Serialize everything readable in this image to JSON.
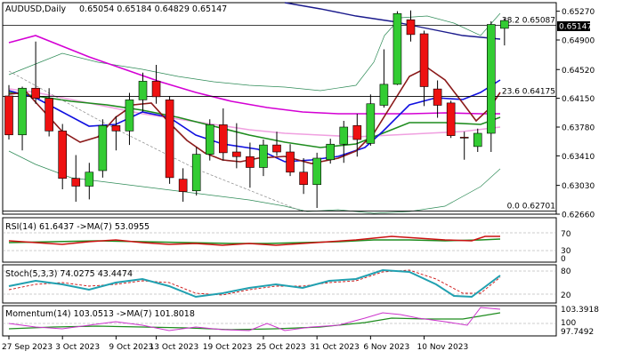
{
  "chart_data": {
    "type": "candlestick",
    "symbol_label": "AUDUSD,Daily",
    "ohlc_label": "0.65054 0.65184 0.64829 0.65147",
    "price_label": "0.65147",
    "price_axis_ticks": [
      "0.65270",
      "0.64900",
      "0.64520",
      "0.64150",
      "0.63780",
      "0.63410",
      "0.63030",
      "0.62660"
    ],
    "price_range": [
      0.6266,
      0.6538
    ],
    "date_labels": [
      "27 Sep 2023",
      "3 Oct 2023",
      "9 Oct 2023",
      "13 Oct 2023",
      "19 Oct 2023",
      "25 Oct 2023",
      "31 Oct 2023",
      "6 Nov 2023",
      "10 Nov 2023"
    ],
    "fib_levels": [
      {
        "label": "38.2 0.65087",
        "value": 0.65087
      },
      {
        "label": "23.6 0.64175",
        "value": 0.64175
      },
      {
        "label": "0.0 0.62701",
        "value": 0.62701
      }
    ],
    "candles": [
      {
        "o": 0.6418,
        "h": 0.6432,
        "l": 0.6362,
        "c": 0.6368
      },
      {
        "o": 0.6368,
        "h": 0.643,
        "l": 0.6348,
        "c": 0.6428
      },
      {
        "o": 0.6428,
        "h": 0.6488,
        "l": 0.6408,
        "c": 0.6415
      },
      {
        "o": 0.6415,
        "h": 0.6428,
        "l": 0.6366,
        "c": 0.6373
      },
      {
        "o": 0.6373,
        "h": 0.6382,
        "l": 0.6298,
        "c": 0.6312
      },
      {
        "o": 0.6312,
        "h": 0.6342,
        "l": 0.6282,
        "c": 0.6302
      },
      {
        "o": 0.6302,
        "h": 0.6332,
        "l": 0.6285,
        "c": 0.632
      },
      {
        "o": 0.6322,
        "h": 0.6388,
        "l": 0.6313,
        "c": 0.638
      },
      {
        "o": 0.638,
        "h": 0.6392,
        "l": 0.6348,
        "c": 0.6373
      },
      {
        "o": 0.6373,
        "h": 0.6422,
        "l": 0.6355,
        "c": 0.6413
      },
      {
        "o": 0.6413,
        "h": 0.6448,
        "l": 0.6398,
        "c": 0.6437
      },
      {
        "o": 0.6437,
        "h": 0.6458,
        "l": 0.6408,
        "c": 0.6417
      },
      {
        "o": 0.6413,
        "h": 0.6418,
        "l": 0.6305,
        "c": 0.6313
      },
      {
        "o": 0.6311,
        "h": 0.6325,
        "l": 0.6282,
        "c": 0.6295
      },
      {
        "o": 0.6296,
        "h": 0.6352,
        "l": 0.629,
        "c": 0.6343
      },
      {
        "o": 0.6343,
        "h": 0.6388,
        "l": 0.6335,
        "c": 0.6381
      },
      {
        "o": 0.6381,
        "h": 0.6402,
        "l": 0.6335,
        "c": 0.6345
      },
      {
        "o": 0.6346,
        "h": 0.6383,
        "l": 0.6325,
        "c": 0.634
      },
      {
        "o": 0.634,
        "h": 0.6358,
        "l": 0.63,
        "c": 0.6326
      },
      {
        "o": 0.6326,
        "h": 0.6362,
        "l": 0.6315,
        "c": 0.6355
      },
      {
        "o": 0.6355,
        "h": 0.6372,
        "l": 0.6341,
        "c": 0.6346
      },
      {
        "o": 0.6346,
        "h": 0.6356,
        "l": 0.6315,
        "c": 0.632
      },
      {
        "o": 0.632,
        "h": 0.6338,
        "l": 0.6292,
        "c": 0.6304
      },
      {
        "o": 0.6304,
        "h": 0.6345,
        "l": 0.6274,
        "c": 0.6338
      },
      {
        "o": 0.6336,
        "h": 0.6363,
        "l": 0.6331,
        "c": 0.6356
      },
      {
        "o": 0.6356,
        "h": 0.6386,
        "l": 0.6332,
        "c": 0.6378
      },
      {
        "o": 0.638,
        "h": 0.6395,
        "l": 0.634,
        "c": 0.6362
      },
      {
        "o": 0.6357,
        "h": 0.642,
        "l": 0.6354,
        "c": 0.6408
      },
      {
        "o": 0.6406,
        "h": 0.6478,
        "l": 0.6403,
        "c": 0.6433
      },
      {
        "o": 0.6433,
        "h": 0.6527,
        "l": 0.6432,
        "c": 0.6524
      },
      {
        "o": 0.6516,
        "h": 0.6528,
        "l": 0.6488,
        "c": 0.6497
      },
      {
        "o": 0.6498,
        "h": 0.6502,
        "l": 0.6405,
        "c": 0.643
      },
      {
        "o": 0.6427,
        "h": 0.6438,
        "l": 0.639,
        "c": 0.6406
      },
      {
        "o": 0.6409,
        "h": 0.6412,
        "l": 0.6364,
        "c": 0.6367
      },
      {
        "o": 0.6365,
        "h": 0.6372,
        "l": 0.6336,
        "c": 0.6364
      },
      {
        "o": 0.6353,
        "h": 0.6376,
        "l": 0.6346,
        "c": 0.637
      },
      {
        "o": 0.637,
        "h": 0.6514,
        "l": 0.6346,
        "c": 0.651
      },
      {
        "o": 0.6505,
        "h": 0.6518,
        "l": 0.6483,
        "c": 0.6515
      }
    ],
    "indicators": [
      {
        "label": "RSI(14) 61.6437 ->MA(7) 53.0955",
        "axis": [
          "70",
          "30",
          "0"
        ]
      },
      {
        "label": "Stoch(5,3,3) 74.0275 43.4474",
        "axis": [
          "80",
          "20"
        ]
      },
      {
        "label": "Momentum(14) 103.0513 ->MA(7) 101.8018",
        "axis": [
          "103.3918",
          "100",
          "97.7492"
        ]
      }
    ]
  }
}
